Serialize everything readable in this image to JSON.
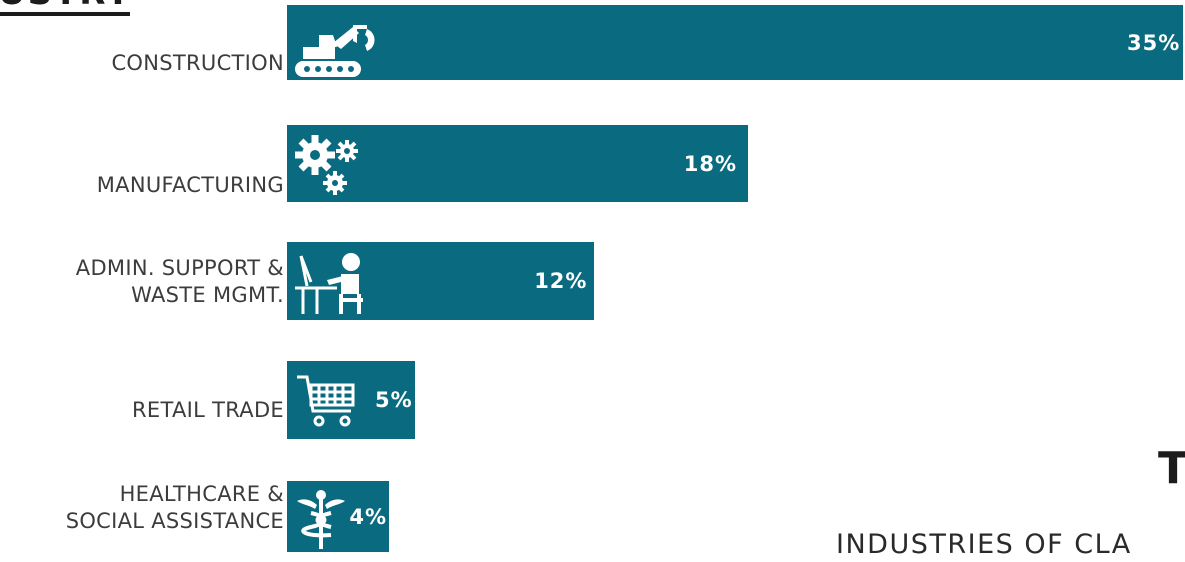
{
  "header": {
    "title": "USTRY"
  },
  "footer": {
    "big_letter": "T",
    "subtitle": "INDUSTRIES OF CLA"
  },
  "colors": {
    "bar": "#0a6a80",
    "text": "#3c3c3c",
    "value": "#ffffff"
  },
  "icons": [
    "excavator-icon",
    "gears-icon",
    "desk-worker-icon",
    "shopping-cart-icon",
    "caduceus-icon"
  ],
  "chart_data": {
    "type": "bar",
    "orientation": "horizontal",
    "categories": [
      [
        "CONSTRUCTION"
      ],
      [
        "MANUFACTURING"
      ],
      [
        "ADMIN. SUPPORT &",
        "WASTE MGMT."
      ],
      [
        "RETAIL TRADE"
      ],
      [
        "HEALTHCARE &",
        "SOCIAL ASSISTANCE"
      ]
    ],
    "values": [
      35,
      18,
      12,
      5,
      4
    ],
    "value_labels": [
      "35%",
      "18%",
      "12%",
      "5%",
      "4%"
    ]
  }
}
